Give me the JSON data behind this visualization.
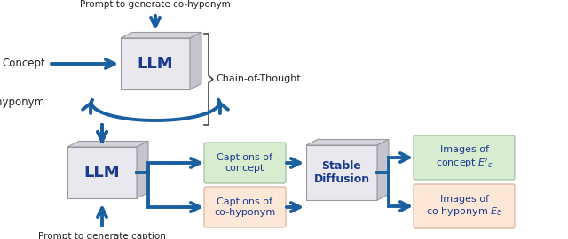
{
  "blue_dark": "#1a3a8f",
  "blue_arrow": "#1a5fa0",
  "box_face": "#e8e8ee",
  "box_edge": "#999999",
  "green_bg": "#d8ecd0",
  "green_edge": "#99bb99",
  "pink_bg": "#fde8d8",
  "pink_edge": "#ddaa99",
  "llm_label": "LLM",
  "sd_label": "Stable\nDiffusion",
  "text_color": "#222222",
  "labels": {
    "prompt_top": "Prompt to generate co-hyponym",
    "concept": "Concept",
    "co_hyponym_label": "Co-hyponym",
    "chain_of_thought": "Chain-of-Thought",
    "prompt_bottom": "Prompt to generate caption",
    "captions_concept": "Captions of\nconcept",
    "captions_cohyponym": "Captions of\nco-hyponym",
    "images_concept": "Images of\nconcept $E'_c$",
    "images_cohyponym": "Images of\nco-hyponym $E_{\\bar{c}}$"
  }
}
